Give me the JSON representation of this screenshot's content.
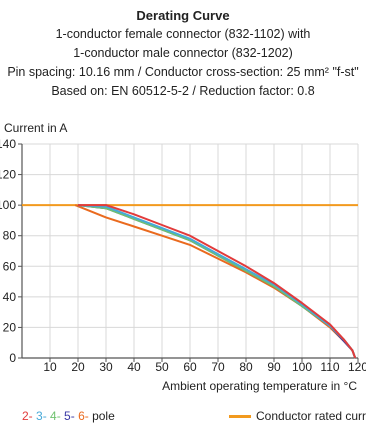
{
  "title": "Derating Curve",
  "subtitle_lines": [
    "1-conductor female connector (832-1102) with",
    "1-conductor male connector (832-1202)",
    "Pin spacing: 10.16 mm / Conductor cross-section: 25 mm² \"f-st\"",
    "Based on: EN 60512-5-2 / Reduction factor: 0.8"
  ],
  "chart_data": {
    "type": "line",
    "ylabel": "Current in A",
    "xlabel": "Ambient operating temperature in °C",
    "xlim": [
      0,
      120
    ],
    "ylim": [
      0,
      140
    ],
    "x_ticks": [
      10,
      20,
      30,
      40,
      50,
      60,
      70,
      80,
      90,
      100,
      110,
      120
    ],
    "y_ticks": [
      0,
      20,
      40,
      60,
      80,
      100,
      120,
      140
    ],
    "grid": true,
    "legend_position": "bottom",
    "series": [
      {
        "name": "2-",
        "color": "#e23b3b",
        "x": [
          20,
          30,
          40,
          50,
          60,
          70,
          80,
          90,
          100,
          110,
          115,
          118,
          119
        ],
        "y": [
          100,
          100,
          94,
          87,
          80,
          70,
          60,
          49,
          36,
          22,
          12,
          5,
          0
        ]
      },
      {
        "name": "3-",
        "color": "#46a9d8",
        "x": [
          20,
          30,
          40,
          50,
          60,
          70,
          80,
          90,
          100,
          110,
          115,
          118,
          119
        ],
        "y": [
          100,
          99,
          92,
          85,
          78,
          68,
          58,
          48,
          35,
          21,
          12,
          5,
          0
        ]
      },
      {
        "name": "4-",
        "color": "#6fc26f",
        "x": [
          20,
          30,
          40,
          50,
          60,
          70,
          80,
          90,
          100,
          110,
          115,
          118,
          119
        ],
        "y": [
          100,
          98,
          91,
          84,
          77,
          67,
          57,
          47,
          34,
          21,
          12,
          5,
          0
        ]
      },
      {
        "name": "5-",
        "color": "#3a3aa6",
        "x": [
          20,
          30,
          40,
          50,
          60,
          70,
          80,
          90,
          100,
          110,
          115,
          118,
          119
        ],
        "y": [
          100,
          98,
          91,
          84,
          77,
          67,
          57,
          47,
          34,
          21,
          11,
          5,
          0
        ]
      },
      {
        "name": "6-",
        "color": "#ea6a1e",
        "x": [
          19,
          30,
          40,
          50,
          60,
          70,
          80,
          90,
          100,
          110,
          115,
          118,
          119
        ],
        "y": [
          100,
          92,
          86,
          80,
          74,
          65,
          56,
          46,
          34,
          20,
          11,
          5,
          0
        ]
      }
    ],
    "rated_current": {
      "label": "Conductor rated current",
      "value": 100,
      "color": "#f29a1e"
    },
    "pole_suffix": "pole",
    "axis_color": "#555555",
    "grid_color": "#d8d8d8"
  }
}
